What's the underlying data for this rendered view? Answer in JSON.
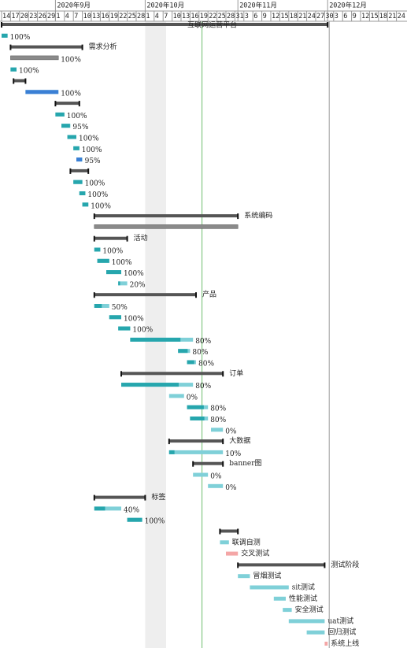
{
  "chart_data": {
    "type": "gantt",
    "xlim": [
      "2020-08-14",
      "2020-12-27"
    ],
    "months": [
      {
        "value": "2020-09-01",
        "label": "2020年9月"
      },
      {
        "value": "2020-10-01",
        "label": "2020年10月"
      },
      {
        "value": "2020-11-01",
        "label": "2020年11月"
      },
      {
        "value": "2020-12-01",
        "label": "2020年12月"
      }
    ],
    "xticks": [
      {
        "value": "2020-08-14",
        "label": "14"
      },
      {
        "value": "2020-08-17",
        "label": "17"
      },
      {
        "value": "2020-08-20",
        "label": "20"
      },
      {
        "value": "2020-08-23",
        "label": "23"
      },
      {
        "value": "2020-08-26",
        "label": "26"
      },
      {
        "value": "2020-08-29",
        "label": "29"
      },
      {
        "value": "2020-09-01",
        "label": "1"
      },
      {
        "value": "2020-09-04",
        "label": "4"
      },
      {
        "value": "2020-09-07",
        "label": "7"
      },
      {
        "value": "2020-09-10",
        "label": "10"
      },
      {
        "value": "2020-09-13",
        "label": "13"
      },
      {
        "value": "2020-09-16",
        "label": "16"
      },
      {
        "value": "2020-09-19",
        "label": "19"
      },
      {
        "value": "2020-09-22",
        "label": "22"
      },
      {
        "value": "2020-09-25",
        "label": "25"
      },
      {
        "value": "2020-09-28",
        "label": "28"
      },
      {
        "value": "2020-10-01",
        "label": "1"
      },
      {
        "value": "2020-10-04",
        "label": "4"
      },
      {
        "value": "2020-10-07",
        "label": "7"
      },
      {
        "value": "2020-10-10",
        "label": "10"
      },
      {
        "value": "2020-10-13",
        "label": "13"
      },
      {
        "value": "2020-10-16",
        "label": "16"
      },
      {
        "value": "2020-10-19",
        "label": "19"
      },
      {
        "value": "2020-10-22",
        "label": "22"
      },
      {
        "value": "2020-10-25",
        "label": "25"
      },
      {
        "value": "2020-10-28",
        "label": "28"
      },
      {
        "value": "2020-10-31",
        "label": "31"
      },
      {
        "value": "2020-11-03",
        "label": "3"
      },
      {
        "value": "2020-11-06",
        "label": "6"
      },
      {
        "value": "2020-11-09",
        "label": "9"
      },
      {
        "value": "2020-11-12",
        "label": "12"
      },
      {
        "value": "2020-11-15",
        "label": "15"
      },
      {
        "value": "2020-11-18",
        "label": "18"
      },
      {
        "value": "2020-11-21",
        "label": "21"
      },
      {
        "value": "2020-11-24",
        "label": "24"
      },
      {
        "value": "2020-11-27",
        "label": "27"
      },
      {
        "value": "2020-11-30",
        "label": "30"
      },
      {
        "value": "2020-12-03",
        "label": "3"
      },
      {
        "value": "2020-12-06",
        "label": "6"
      },
      {
        "value": "2020-12-09",
        "label": "9"
      },
      {
        "value": "2020-12-12",
        "label": "12"
      },
      {
        "value": "2020-12-15",
        "label": "15"
      },
      {
        "value": "2020-12-18",
        "label": "18"
      },
      {
        "value": "2020-12-21",
        "label": "21"
      },
      {
        "value": "2020-12-24",
        "label": "24"
      }
    ],
    "today": "2020-10-20",
    "nonworking": [
      "2020-10-01",
      "2020-10-07"
    ],
    "tasks": [
      {
        "kind": "summary",
        "start": "2020-08-14",
        "end": "2020-12-01",
        "label": "互联网运营平台"
      },
      {
        "kind": "task",
        "start": "2020-08-14",
        "end": "2020-08-16",
        "progress": 100,
        "progress_label": "100%"
      },
      {
        "kind": "summary",
        "start": "2020-08-17",
        "end": "2020-09-10",
        "label": "需求分析"
      },
      {
        "kind": "group",
        "start": "2020-08-17",
        "end": "2020-09-02",
        "progress": 100,
        "progress_label": "100%"
      },
      {
        "kind": "task",
        "start": "2020-08-17",
        "end": "2020-08-19",
        "progress": 100,
        "progress_label": "100%"
      },
      {
        "kind": "summary",
        "start": "2020-08-18",
        "end": "2020-08-22"
      },
      {
        "kind": "task",
        "start": "2020-08-22",
        "end": "2020-09-02",
        "progress": 100,
        "progress_label": "100%",
        "color": "#3a7fd5"
      },
      {
        "kind": "summary",
        "start": "2020-09-01",
        "end": "2020-09-09"
      },
      {
        "kind": "task",
        "start": "2020-09-01",
        "end": "2020-09-04",
        "progress": 100,
        "progress_label": "100%"
      },
      {
        "kind": "task",
        "start": "2020-09-03",
        "end": "2020-09-06",
        "progress": 95,
        "progress_label": "95%"
      },
      {
        "kind": "task",
        "start": "2020-09-05",
        "end": "2020-09-08",
        "progress": 100,
        "progress_label": "100%"
      },
      {
        "kind": "task",
        "start": "2020-09-07",
        "end": "2020-09-09",
        "progress": 100,
        "progress_label": "100%"
      },
      {
        "kind": "task",
        "start": "2020-09-08",
        "end": "2020-09-10",
        "progress": 95,
        "progress_label": "95%",
        "color": "#3a7fd5"
      },
      {
        "kind": "summary",
        "start": "2020-09-06",
        "end": "2020-09-12"
      },
      {
        "kind": "task",
        "start": "2020-09-07",
        "end": "2020-09-10",
        "progress": 100,
        "progress_label": "100%"
      },
      {
        "kind": "task",
        "start": "2020-09-09",
        "end": "2020-09-11",
        "progress": 100,
        "progress_label": "100%"
      },
      {
        "kind": "task",
        "start": "2020-09-10",
        "end": "2020-09-12",
        "progress": 100,
        "progress_label": "100%"
      },
      {
        "kind": "summary",
        "start": "2020-09-14",
        "end": "2020-11-01",
        "label": "系统编码"
      },
      {
        "kind": "group",
        "start": "2020-09-14",
        "end": "2020-11-01"
      },
      {
        "kind": "summary",
        "start": "2020-09-14",
        "end": "2020-09-25",
        "label": "活动"
      },
      {
        "kind": "task",
        "start": "2020-09-14",
        "end": "2020-09-16",
        "progress": 100,
        "progress_label": "100%"
      },
      {
        "kind": "task",
        "start": "2020-09-15",
        "end": "2020-09-19",
        "progress": 100,
        "progress_label": "100%"
      },
      {
        "kind": "task",
        "start": "2020-09-18",
        "end": "2020-09-23",
        "progress": 100,
        "progress_label": "100%"
      },
      {
        "kind": "task",
        "start": "2020-09-22",
        "end": "2020-09-25",
        "progress": 20,
        "progress_label": "20%"
      },
      {
        "kind": "summary",
        "start": "2020-09-14",
        "end": "2020-10-18",
        "label": "产品"
      },
      {
        "kind": "task",
        "start": "2020-09-14",
        "end": "2020-09-19",
        "progress": 50,
        "progress_label": "50%"
      },
      {
        "kind": "task",
        "start": "2020-09-19",
        "end": "2020-09-23",
        "progress": 100,
        "progress_label": "100%"
      },
      {
        "kind": "task",
        "start": "2020-09-22",
        "end": "2020-09-26",
        "progress": 100,
        "progress_label": "100%"
      },
      {
        "kind": "task",
        "start": "2020-09-26",
        "end": "2020-10-17",
        "progress": 80,
        "progress_label": "80%"
      },
      {
        "kind": "task",
        "start": "2020-10-12",
        "end": "2020-10-16",
        "progress": 80,
        "progress_label": "80%"
      },
      {
        "kind": "task",
        "start": "2020-10-15",
        "end": "2020-10-18",
        "progress": 80,
        "progress_label": "80%"
      },
      {
        "kind": "summary",
        "start": "2020-09-23",
        "end": "2020-10-27",
        "label": "订单"
      },
      {
        "kind": "task",
        "start": "2020-09-23",
        "end": "2020-10-17",
        "progress": 80,
        "progress_label": "80%"
      },
      {
        "kind": "task",
        "start": "2020-10-09",
        "end": "2020-10-14",
        "progress": 0,
        "progress_label": "0%"
      },
      {
        "kind": "task",
        "start": "2020-10-15",
        "end": "2020-10-22",
        "progress": 80,
        "progress_label": "80%"
      },
      {
        "kind": "task",
        "start": "2020-10-16",
        "end": "2020-10-22",
        "progress": 80,
        "progress_label": "80%"
      },
      {
        "kind": "task",
        "start": "2020-10-23",
        "end": "2020-10-27",
        "progress": 0,
        "progress_label": "0%"
      },
      {
        "kind": "summary",
        "start": "2020-10-09",
        "end": "2020-10-27",
        "label": "大数据"
      },
      {
        "kind": "task",
        "start": "2020-10-09",
        "end": "2020-10-27",
        "progress": 10,
        "progress_label": "10%"
      },
      {
        "kind": "summary",
        "start": "2020-10-17",
        "end": "2020-10-27",
        "label": "banner图"
      },
      {
        "kind": "task",
        "start": "2020-10-17",
        "end": "2020-10-22",
        "progress": 0,
        "progress_label": "0%"
      },
      {
        "kind": "task",
        "start": "2020-10-22",
        "end": "2020-10-27",
        "progress": 0,
        "progress_label": "0%"
      },
      {
        "kind": "summary",
        "start": "2020-09-14",
        "end": "2020-10-01",
        "label": "标签"
      },
      {
        "kind": "task",
        "start": "2020-09-14",
        "end": "2020-09-23",
        "progress": 40,
        "progress_label": "40%"
      },
      {
        "kind": "task",
        "start": "2020-09-25",
        "end": "2020-09-30",
        "progress": 100,
        "progress_label": "100%"
      },
      {
        "kind": "summary",
        "start": "2020-10-26",
        "end": "2020-11-01"
      },
      {
        "kind": "task",
        "start": "2020-10-26",
        "end": "2020-10-29",
        "label": "联调自测"
      },
      {
        "kind": "task",
        "start": "2020-10-28",
        "end": "2020-11-01",
        "label": "交叉测试",
        "color": "#f4a6a6"
      },
      {
        "kind": "summary",
        "start": "2020-11-01",
        "end": "2020-11-30",
        "label": "测试阶段"
      },
      {
        "kind": "task",
        "start": "2020-11-01",
        "end": "2020-11-05",
        "label": "冒烟测试"
      },
      {
        "kind": "task",
        "start": "2020-11-05",
        "end": "2020-11-18",
        "label": "sit测试"
      },
      {
        "kind": "task",
        "start": "2020-11-13",
        "end": "2020-11-17",
        "label": "性能测试"
      },
      {
        "kind": "task",
        "start": "2020-11-16",
        "end": "2020-11-19",
        "label": "安全测试"
      },
      {
        "kind": "task",
        "start": "2020-11-18",
        "end": "2020-11-30",
        "label": "uat测试"
      },
      {
        "kind": "task",
        "start": "2020-11-24",
        "end": "2020-11-30",
        "label": "回归测试"
      },
      {
        "kind": "task",
        "start": "2020-11-30",
        "end": "2020-12-01",
        "label": "系统上线",
        "color": "#f4a6a6"
      }
    ]
  }
}
